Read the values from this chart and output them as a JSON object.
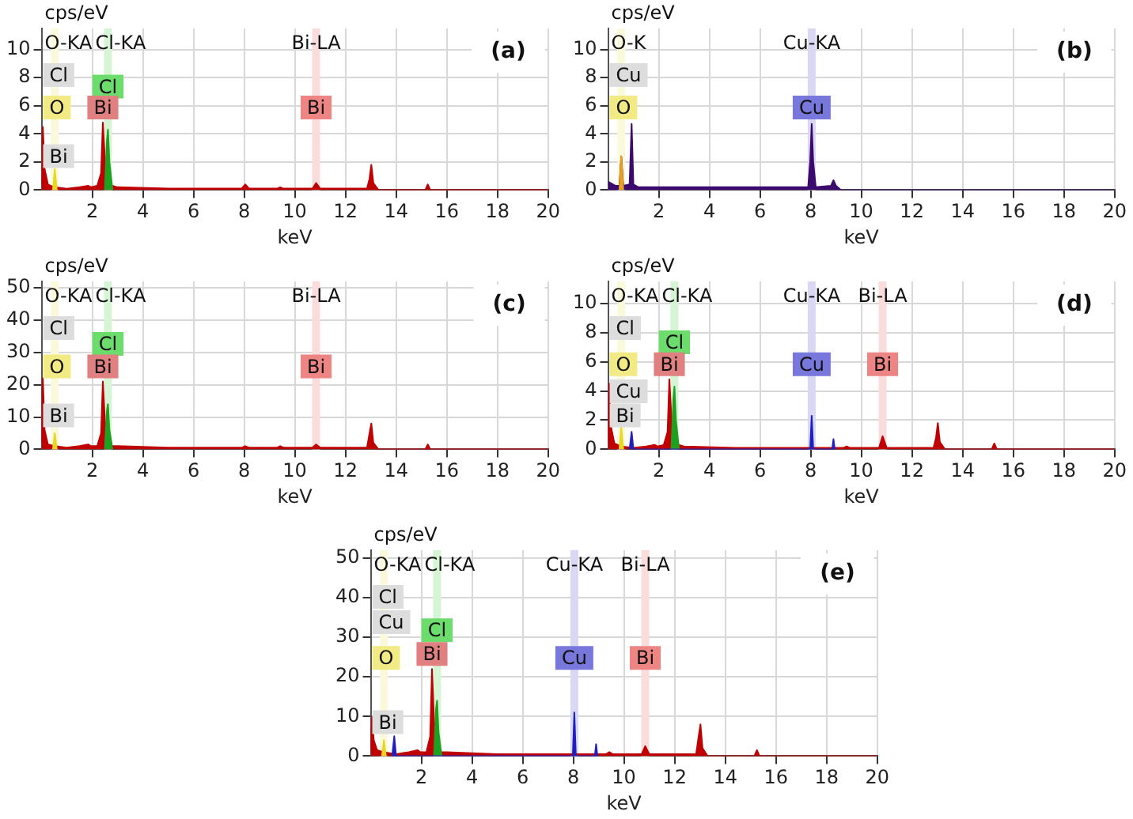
{
  "chart_data": [
    {
      "type": "area",
      "title": "(a)",
      "xlabel": "keV",
      "ylabel": "cps/eV",
      "xlim": [
        0,
        20
      ],
      "xticks": [
        2,
        4,
        6,
        8,
        10,
        12,
        14,
        16,
        18,
        20
      ],
      "ylim": [
        0,
        11.5
      ],
      "yticks": [
        0,
        2,
        4,
        6,
        8,
        10
      ],
      "grid": true,
      "legend": false,
      "marker": "none",
      "series": [
        {
          "color": "#c00000",
          "x": [
            0,
            0.05,
            0.12,
            0.25,
            0.5,
            1,
            1.5,
            1.85,
            1.95,
            2.2,
            2.35,
            2.42,
            2.5,
            2.6,
            2.8,
            3,
            5,
            7.9,
            8.04,
            8.2,
            9.3,
            9.42,
            9.55,
            10.7,
            10.84,
            11,
            12.85,
            12.95,
            13.02,
            13.1,
            13.3,
            15.15,
            15.25,
            15.35,
            16,
            20
          ],
          "values": [
            0.4,
            4.5,
            1.5,
            0.4,
            0.2,
            0.1,
            0.2,
            0.3,
            0.2,
            0.3,
            1.2,
            4.8,
            2.2,
            0.6,
            0.3,
            0.2,
            0.1,
            0.1,
            0.4,
            0.1,
            0.1,
            0.2,
            0.1,
            0.1,
            0.5,
            0.1,
            0.1,
            0.8,
            1.8,
            0.5,
            0,
            0,
            0.4,
            0,
            0,
            0
          ]
        },
        {
          "color": "#20a020",
          "x": [
            2.5,
            2.58,
            2.62,
            2.68,
            2.8
          ],
          "values": [
            0,
            3.5,
            4.3,
            2,
            0
          ]
        },
        {
          "color": "#e8d820",
          "x": [
            0.45,
            0.52,
            0.6
          ],
          "values": [
            0,
            1.5,
            0
          ]
        }
      ],
      "ref_lines": [
        {
          "axis": "x",
          "value": 0.52,
          "label": "O-KA",
          "color": "#fbf9dc"
        },
        {
          "axis": "x",
          "value": 2.62,
          "label": "Cl-KA",
          "color": "#d5f5d5"
        },
        {
          "axis": "x",
          "value": 10.84,
          "label": "Bi-LA",
          "color": "#fadcdc"
        }
      ],
      "annotations": [
        "Cl",
        "Bi",
        {
          "text": "O",
          "x": 0.52,
          "y": 4.8
        },
        {
          "text": "Cl",
          "x": 2.62,
          "y": 6.3
        },
        {
          "text": "Bi",
          "x": 2.42,
          "y": 4.8
        },
        {
          "text": "Bi",
          "x": 10.84,
          "y": 4.8
        }
      ]
    },
    {
      "type": "area",
      "title": "(b)",
      "xlabel": "keV",
      "ylabel": "cps/eV",
      "xlim": [
        0,
        20
      ],
      "xticks": [
        2,
        4,
        6,
        8,
        10,
        12,
        14,
        16,
        18,
        20
      ],
      "ylim": [
        0,
        11.5
      ],
      "yticks": [
        0,
        2,
        4,
        6,
        8,
        10
      ],
      "grid": true,
      "legend": false,
      "marker": "none",
      "series": [
        {
          "color": "#3c0a6e",
          "x": [
            0,
            0.1,
            0.3,
            0.45,
            0.52,
            0.6,
            0.85,
            0.93,
            1,
            1.2,
            3,
            6,
            7.9,
            7.98,
            8.04,
            8.1,
            8.2,
            8.8,
            8.9,
            9,
            9.2,
            20
          ],
          "values": [
            0.6,
            0.5,
            0.3,
            0.3,
            2.4,
            0.3,
            0.4,
            4.7,
            0.4,
            0.2,
            0.2,
            0.2,
            0.2,
            2,
            4.7,
            2,
            0.2,
            0.3,
            0.7,
            0.3,
            0,
            0
          ]
        },
        {
          "color": "#e8a020",
          "x": [
            0.45,
            0.52,
            0.6
          ],
          "values": [
            0,
            2.4,
            0
          ]
        }
      ],
      "ref_lines": [
        {
          "axis": "x",
          "value": 0.52,
          "label": "O-K",
          "color": "#fbf9dc"
        },
        {
          "axis": "x",
          "value": 8.04,
          "label": "Cu-KA",
          "color": "#d8d8f5"
        }
      ],
      "annotations": [
        "Cu",
        {
          "text": "O",
          "x": 0.52,
          "y": 4.8
        },
        {
          "text": "Cu",
          "x": 8.04,
          "y": 4.8
        }
      ]
    },
    {
      "type": "area",
      "title": "(c)",
      "xlabel": "keV",
      "ylabel": "cps/eV",
      "xlim": [
        0,
        20
      ],
      "xticks": [
        2,
        4,
        6,
        8,
        10,
        12,
        14,
        16,
        18,
        20
      ],
      "ylim": [
        0,
        52
      ],
      "yticks": [
        0,
        10,
        20,
        30,
        40,
        50
      ],
      "grid": true,
      "legend": false,
      "marker": "none",
      "series": [
        {
          "color": "#c00000",
          "x": [
            0,
            0.05,
            0.12,
            0.25,
            0.5,
            1,
            1.5,
            1.85,
            1.95,
            2.2,
            2.35,
            2.42,
            2.5,
            2.6,
            2.8,
            3,
            5,
            7.9,
            8.04,
            8.2,
            9.3,
            9.42,
            9.55,
            10.7,
            10.84,
            11,
            12.85,
            12.95,
            13.02,
            13.1,
            13.3,
            15.15,
            15.25,
            15.35,
            16,
            20
          ],
          "values": [
            2,
            22,
            6,
            1.5,
            1,
            0.5,
            1,
            1.5,
            1,
            1,
            5,
            21,
            9,
            2.5,
            1,
            1,
            0.5,
            0.5,
            1,
            0.5,
            0.5,
            1,
            0.5,
            0.5,
            1.5,
            0.5,
            0.5,
            5,
            8,
            2,
            0,
            0,
            1.5,
            0,
            0,
            0
          ]
        },
        {
          "color": "#20a020",
          "x": [
            2.5,
            2.58,
            2.62,
            2.68,
            2.8
          ],
          "values": [
            0,
            12,
            14,
            6,
            0
          ]
        },
        {
          "color": "#e8d820",
          "x": [
            0.45,
            0.52,
            0.6
          ],
          "values": [
            0,
            5,
            0
          ]
        }
      ],
      "ref_lines": [
        {
          "axis": "x",
          "value": 0.52,
          "label": "O-KA",
          "color": "#fbf9dc"
        },
        {
          "axis": "x",
          "value": 2.62,
          "label": "Cl-KA",
          "color": "#d5f5d5"
        },
        {
          "axis": "x",
          "value": 10.84,
          "label": "Bi-LA",
          "color": "#fadcdc"
        }
      ],
      "annotations": [
        "Cl",
        "Bi",
        {
          "text": "O",
          "x": 0.52,
          "y": 21
        },
        {
          "text": "Cl",
          "x": 2.62,
          "y": 28
        },
        {
          "text": "Bi",
          "x": 2.42,
          "y": 21
        },
        {
          "text": "Bi",
          "x": 10.84,
          "y": 21
        }
      ]
    },
    {
      "type": "area",
      "title": "(d)",
      "xlabel": "keV",
      "ylabel": "cps/eV",
      "xlim": [
        0,
        20
      ],
      "xticks": [
        2,
        4,
        6,
        8,
        10,
        12,
        14,
        16,
        18,
        20
      ],
      "ylim": [
        0,
        11.5
      ],
      "yticks": [
        0,
        2,
        4,
        6,
        8,
        10
      ],
      "grid": true,
      "legend": false,
      "marker": "none",
      "series": [
        {
          "color": "#c00000",
          "x": [
            0,
            0.05,
            0.12,
            0.25,
            0.5,
            1,
            1.5,
            1.85,
            1.95,
            2.2,
            2.35,
            2.42,
            2.5,
            2.6,
            2.8,
            3,
            5,
            7.9,
            8.04,
            8.2,
            9.3,
            9.42,
            9.55,
            10.7,
            10.84,
            11,
            12.85,
            12.95,
            13.02,
            13.1,
            13.3,
            15.15,
            15.25,
            15.35,
            16,
            20
          ],
          "values": [
            0.4,
            4.5,
            1.5,
            0.4,
            0.2,
            0.1,
            0.2,
            0.3,
            0.2,
            0.3,
            1.2,
            4.8,
            2.2,
            0.6,
            0.3,
            0.2,
            0.1,
            0.1,
            0.1,
            0.1,
            0.1,
            0.2,
            0.1,
            0.1,
            0.9,
            0.1,
            0.1,
            0.8,
            1.8,
            0.5,
            0,
            0,
            0.4,
            0,
            0,
            0
          ]
        },
        {
          "color": "#20a020",
          "x": [
            2.5,
            2.58,
            2.62,
            2.68,
            2.8
          ],
          "values": [
            0,
            3.5,
            4.3,
            2,
            0
          ]
        },
        {
          "color": "#2020c0",
          "x": [
            0.85,
            0.93,
            1,
            7.98,
            8.04,
            8.1,
            8.85,
            8.9,
            8.95
          ],
          "values": [
            0,
            1.2,
            0,
            0,
            2.3,
            0,
            0,
            0.7,
            0
          ]
        },
        {
          "color": "#e8d820",
          "x": [
            0.45,
            0.52,
            0.6
          ],
          "values": [
            0,
            1.5,
            0
          ]
        }
      ],
      "ref_lines": [
        {
          "axis": "x",
          "value": 0.52,
          "label": "O-KA",
          "color": "#fbf9dc"
        },
        {
          "axis": "x",
          "value": 2.62,
          "label": "Cl-KA",
          "color": "#d5f5d5"
        },
        {
          "axis": "x",
          "value": 8.04,
          "label": "Cu-KA",
          "color": "#d8d8f5"
        },
        {
          "axis": "x",
          "value": 10.84,
          "label": "Bi-LA",
          "color": "#fadcdc"
        }
      ],
      "annotations": [
        "Cl",
        "Cu",
        "Bi",
        {
          "text": "O",
          "x": 0.52,
          "y": 4.8
        },
        {
          "text": "Cl",
          "x": 2.62,
          "y": 6.3
        },
        {
          "text": "Bi",
          "x": 2.42,
          "y": 4.8
        },
        {
          "text": "Cu",
          "x": 8.04,
          "y": 4.8
        },
        {
          "text": "Bi",
          "x": 10.84,
          "y": 4.8
        }
      ]
    },
    {
      "type": "area",
      "title": "(e)",
      "xlabel": "keV",
      "ylabel": "cps/eV",
      "xlim": [
        0,
        20
      ],
      "xticks": [
        2,
        4,
        6,
        8,
        10,
        12,
        14,
        16,
        18,
        20
      ],
      "ylim": [
        0,
        52
      ],
      "yticks": [
        0,
        10,
        20,
        30,
        40,
        50
      ],
      "grid": true,
      "legend": false,
      "marker": "none",
      "series": [
        {
          "color": "#c00000",
          "x": [
            0,
            0.05,
            0.12,
            0.25,
            0.5,
            1,
            1.5,
            1.85,
            1.95,
            2.2,
            2.35,
            2.42,
            2.5,
            2.6,
            2.8,
            3,
            5,
            7.9,
            8.04,
            8.2,
            9.3,
            9.42,
            9.55,
            10.7,
            10.84,
            11,
            12.85,
            12.95,
            13.02,
            13.1,
            13.3,
            15.15,
            15.25,
            15.35,
            16,
            20
          ],
          "values": [
            2,
            10,
            4,
            1.5,
            1,
            0.5,
            1,
            1.5,
            1,
            1,
            5,
            22,
            9,
            2.5,
            1,
            1,
            0.5,
            0.5,
            0.5,
            0.5,
            0.5,
            1,
            0.5,
            0.5,
            2.5,
            0.5,
            0.5,
            5,
            8,
            2,
            0,
            0,
            1.5,
            0,
            0,
            0
          ]
        },
        {
          "color": "#20a020",
          "x": [
            2.5,
            2.58,
            2.62,
            2.68,
            2.8
          ],
          "values": [
            0,
            12,
            14,
            6,
            0
          ]
        },
        {
          "color": "#2020c0",
          "x": [
            0.85,
            0.93,
            1,
            7.98,
            8.04,
            8.1,
            8.85,
            8.9,
            8.95
          ],
          "values": [
            0,
            5,
            0,
            0,
            11,
            0,
            0,
            3,
            0
          ]
        },
        {
          "color": "#e8d820",
          "x": [
            0.45,
            0.52,
            0.6
          ],
          "values": [
            0,
            4,
            0
          ]
        }
      ],
      "ref_lines": [
        {
          "axis": "x",
          "value": 0.52,
          "label": "O-KA",
          "color": "#fbf9dc"
        },
        {
          "axis": "x",
          "value": 2.62,
          "label": "Cl-KA",
          "color": "#d5f5d5"
        },
        {
          "axis": "x",
          "value": 8.04,
          "label": "Cu-KA",
          "color": "#d8d8f5"
        },
        {
          "axis": "x",
          "value": 10.84,
          "label": "Bi-LA",
          "color": "#fadcdc"
        }
      ],
      "annotations": [
        "Cl",
        "Cu",
        "Bi",
        {
          "text": "O",
          "x": 0.52,
          "y": 21
        },
        {
          "text": "Cl",
          "x": 2.62,
          "y": 28
        },
        {
          "text": "Bi",
          "x": 2.42,
          "y": 22
        },
        {
          "text": "Cu",
          "x": 8.04,
          "y": 21
        },
        {
          "text": "Bi",
          "x": 10.84,
          "y": 21
        }
      ]
    }
  ]
}
